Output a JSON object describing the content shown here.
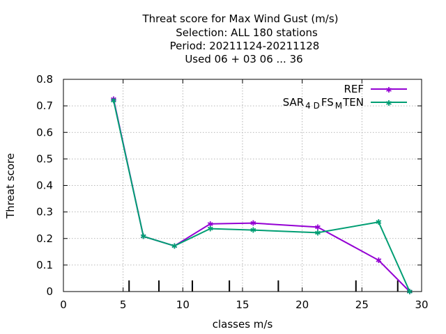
{
  "chart_data": {
    "type": "line",
    "title_lines": [
      "Threat score  for Max Wind Gust (m/s)",
      "Selection: ALL    180 stations",
      "Period: 20211124-20211128",
      "Used  06 + 03 06 ... 36"
    ],
    "xlabel": "classes m/s",
    "ylabel": "Threat score",
    "xlim": [
      0,
      30
    ],
    "ylim": [
      0,
      0.8
    ],
    "xticks": [
      0,
      5,
      10,
      15,
      20,
      25,
      30
    ],
    "yticks": [
      0,
      0.1,
      0.2,
      0.3,
      0.4,
      0.5,
      0.6,
      0.7,
      0.8
    ],
    "grid": true,
    "legend_position": "top-right",
    "class_limits": [
      5.5,
      8,
      10.8,
      13.9,
      18,
      24.5,
      28
    ],
    "series": [
      {
        "name": "REF",
        "name_parts": {
          "base": "REF"
        },
        "color": "#9400d3",
        "x": [
          4.2,
          6.7,
          9.3,
          12.3,
          15.9,
          21.3,
          26.4,
          29.0
        ],
        "values": [
          0.725,
          0.208,
          0.172,
          0.255,
          0.258,
          0.243,
          0.118,
          0.0
        ]
      },
      {
        "name": "SAR_4DFS_MTEN",
        "name_parts": {
          "a": "SAR",
          "sub1": "4 D",
          "b": "FS",
          "sub2": "M",
          "c": "TEN"
        },
        "color": "#009e73",
        "x": [
          4.2,
          6.7,
          9.3,
          12.3,
          15.9,
          21.3,
          26.4,
          29.0
        ],
        "values": [
          0.72,
          0.208,
          0.172,
          0.237,
          0.232,
          0.222,
          0.262,
          0.0
        ]
      }
    ]
  }
}
